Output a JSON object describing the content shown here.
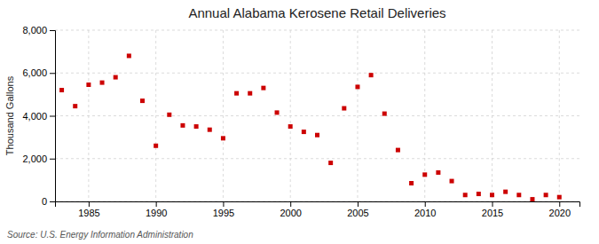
{
  "chart_data": {
    "type": "scatter",
    "title": "Annual Alabama Kerosene Retail Deliveries",
    "ylabel": "Thousand Gallons",
    "source": "Source: U.S. Energy Information Administration",
    "x": [
      1983,
      1984,
      1985,
      1986,
      1987,
      1988,
      1989,
      1990,
      1991,
      1992,
      1993,
      1994,
      1995,
      1996,
      1997,
      1998,
      1999,
      2000,
      2001,
      2002,
      2003,
      2004,
      2005,
      2006,
      2007,
      2008,
      2009,
      2010,
      2011,
      2012,
      2013,
      2014,
      2015,
      2016,
      2017,
      2018,
      2019,
      2020
    ],
    "values": [
      5200,
      4450,
      5450,
      5550,
      5800,
      6800,
      4700,
      2600,
      4050,
      3550,
      3500,
      3350,
      2950,
      5050,
      5050,
      5300,
      4150,
      3500,
      3250,
      3100,
      1800,
      4350,
      5350,
      5900,
      4100,
      2400,
      850,
      1250,
      1350,
      950,
      300,
      350,
      300,
      450,
      300,
      100,
      300,
      200
    ],
    "color": "#cc0000",
    "marker": "square",
    "xlim": [
      1982.5,
      2021.5
    ],
    "ylim": [
      0,
      8000
    ],
    "xticks": [
      1985,
      1990,
      1995,
      2000,
      2005,
      2010,
      2015,
      2020
    ],
    "yticks": [
      0,
      {
        "value": 2000,
        "label": "2,000"
      },
      {
        "value": 4000,
        "label": "4,000"
      },
      {
        "value": 6000,
        "label": "6,000"
      },
      {
        "value": 8000,
        "label": "8,000"
      }
    ],
    "grid": true
  }
}
